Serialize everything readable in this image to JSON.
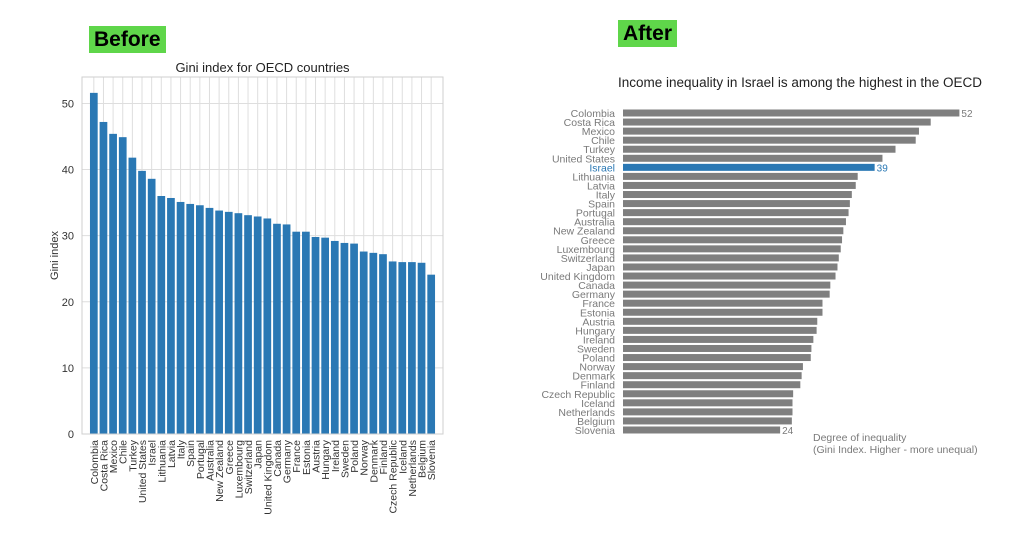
{
  "labels": {
    "before": "Before",
    "after": "After"
  },
  "chart_data": [
    {
      "type": "bar",
      "title": "Gini index for OECD countries",
      "xlabel": "",
      "ylabel": "Gini index",
      "ylim": [
        0,
        54
      ],
      "yticks": [
        0,
        10,
        20,
        30,
        40,
        50
      ],
      "grid": true,
      "color": "#2a78b4",
      "categories": [
        "Colombia",
        "Costa Rica",
        "Mexico",
        "Chile",
        "Turkey",
        "United States",
        "Israel",
        "Lithuania",
        "Latvia",
        "Italy",
        "Spain",
        "Portugal",
        "Australia",
        "New Zealand",
        "Greece",
        "Luxembourg",
        "Switzerland",
        "Japan",
        "United Kingdom",
        "Canada",
        "Germany",
        "France",
        "Estonia",
        "Austria",
        "Hungary",
        "Ireland",
        "Sweden",
        "Poland",
        "Norway",
        "Denmark",
        "Finland",
        "Czech Republic",
        "Iceland",
        "Netherlands",
        "Belgium",
        "Slovenia"
      ],
      "values": [
        51.6,
        47.2,
        45.4,
        44.9,
        41.8,
        39.8,
        38.6,
        36.0,
        35.7,
        35.1,
        34.8,
        34.6,
        34.2,
        33.8,
        33.6,
        33.4,
        33.1,
        32.9,
        32.6,
        31.8,
        31.7,
        30.6,
        30.6,
        29.8,
        29.7,
        29.2,
        28.9,
        28.8,
        27.6,
        27.4,
        27.2,
        26.1,
        26.0,
        26.0,
        25.9,
        24.1
      ]
    },
    {
      "type": "bar",
      "orientation": "horizontal",
      "title": "Income inequality in Israel is among the highest in the OECD",
      "axis_note_line1": "Degree of inequality",
      "axis_note_line2": "(Gini Index. Higher - more unequal)",
      "xlim": [
        0,
        52
      ],
      "grid": false,
      "color": "#7f7f7f",
      "highlight_color": "#2a78b4",
      "highlight": "Israel",
      "categories": [
        "Colombia",
        "Costa Rica",
        "Mexico",
        "Chile",
        "Turkey",
        "United States",
        "Israel",
        "Lithuania",
        "Latvia",
        "Italy",
        "Spain",
        "Portugal",
        "Australia",
        "New Zealand",
        "Greece",
        "Luxembourg",
        "Switzerland",
        "Japan",
        "United Kingdom",
        "Canada",
        "Germany",
        "France",
        "Estonia",
        "Austria",
        "Hungary",
        "Ireland",
        "Sweden",
        "Poland",
        "Norway",
        "Denmark",
        "Finland",
        "Czech Republic",
        "Iceland",
        "Netherlands",
        "Belgium",
        "Slovenia"
      ],
      "values": [
        51.6,
        47.2,
        45.4,
        44.9,
        41.8,
        39.8,
        38.6,
        36.0,
        35.7,
        35.1,
        34.8,
        34.6,
        34.2,
        33.8,
        33.6,
        33.4,
        33.1,
        32.9,
        32.6,
        31.8,
        31.7,
        30.6,
        30.6,
        29.8,
        29.7,
        29.2,
        28.9,
        28.8,
        27.6,
        27.4,
        27.2,
        26.1,
        26.0,
        26.0,
        25.9,
        24.1
      ],
      "data_labels": [
        {
          "category": "Colombia",
          "text": "52"
        },
        {
          "category": "Israel",
          "text": "39"
        },
        {
          "category": "Slovenia",
          "text": "24"
        }
      ]
    }
  ]
}
